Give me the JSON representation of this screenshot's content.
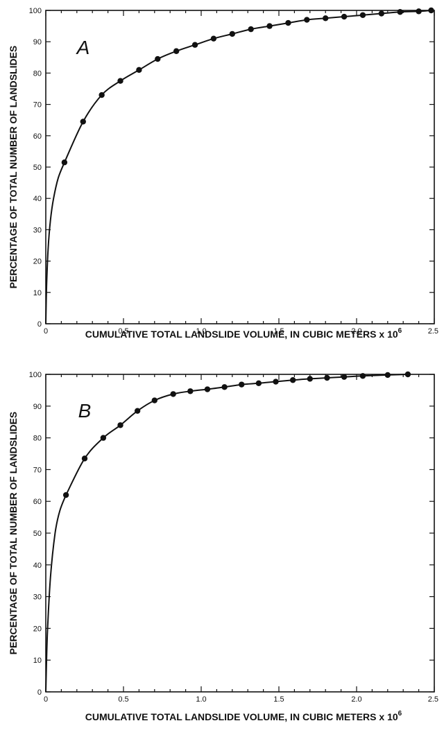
{
  "chart_data": [
    {
      "type": "line",
      "panel_label": "A",
      "ylabel": "PERCENTAGE OF TOTAL NUMBER OF LANDSLIDES",
      "xlabel": "CUMULATIVE TOTAL LANDSLIDE VOLUME, IN CUBIC METERS x 10",
      "xlabel_exponent": "6",
      "xlim": [
        0,
        2.5
      ],
      "ylim": [
        0,
        100
      ],
      "x_ticks": [
        "0",
        "0.5",
        "1.0",
        "1.5",
        "2.0",
        "2.5"
      ],
      "y_ticks": [
        "0",
        "10",
        "20",
        "30",
        "40",
        "50",
        "60",
        "70",
        "80",
        "90",
        "100"
      ],
      "grid": false,
      "x": [
        0.12,
        0.24,
        0.36,
        0.48,
        0.6,
        0.72,
        0.84,
        0.96,
        1.08,
        1.2,
        1.32,
        1.44,
        1.56,
        1.68,
        1.8,
        1.92,
        2.04,
        2.16,
        2.28,
        2.4,
        2.48
      ],
      "y": [
        51.5,
        64.5,
        73.0,
        77.5,
        81.0,
        84.5,
        87.0,
        89.0,
        91.0,
        92.5,
        94.0,
        95.0,
        96.0,
        97.0,
        97.5,
        98.0,
        98.5,
        99.0,
        99.5,
        99.7,
        100.0
      ],
      "curve_x": [
        0.0,
        0.005,
        0.015,
        0.03,
        0.05,
        0.08,
        0.12
      ],
      "curve_y": [
        0.0,
        12.0,
        24.0,
        33.0,
        40.0,
        46.5,
        51.5
      ]
    },
    {
      "type": "line",
      "panel_label": "B",
      "ylabel": "PERCENTAGE OF TOTAL NUMBER OF LANDSLIDES",
      "xlabel": "CUMULATIVE TOTAL LANDSLIDE VOLUME, IN CUBIC METERS x 10",
      "xlabel_exponent": "6",
      "xlim": [
        0,
        2.5
      ],
      "ylim": [
        0,
        100
      ],
      "x_ticks": [
        "0",
        "0.5",
        "1.0",
        "1.5",
        "2.0",
        "2.5"
      ],
      "y_ticks": [
        "0",
        "10",
        "20",
        "30",
        "40",
        "50",
        "60",
        "70",
        "80",
        "90",
        "100"
      ],
      "grid": false,
      "x": [
        0.13,
        0.25,
        0.37,
        0.48,
        0.59,
        0.7,
        0.82,
        0.93,
        1.04,
        1.15,
        1.26,
        1.37,
        1.48,
        1.59,
        1.7,
        1.81,
        1.92,
        2.04,
        2.2,
        2.33
      ],
      "y": [
        62.0,
        73.5,
        80.0,
        84.0,
        88.5,
        91.8,
        93.8,
        94.7,
        95.3,
        96.0,
        96.8,
        97.2,
        97.7,
        98.2,
        98.6,
        98.9,
        99.2,
        99.5,
        99.8,
        100.0
      ],
      "curve_x": [
        0.0,
        0.01,
        0.03,
        0.06,
        0.09,
        0.13
      ],
      "curve_y": [
        0.0,
        18.0,
        36.0,
        50.0,
        57.0,
        62.0
      ]
    }
  ]
}
